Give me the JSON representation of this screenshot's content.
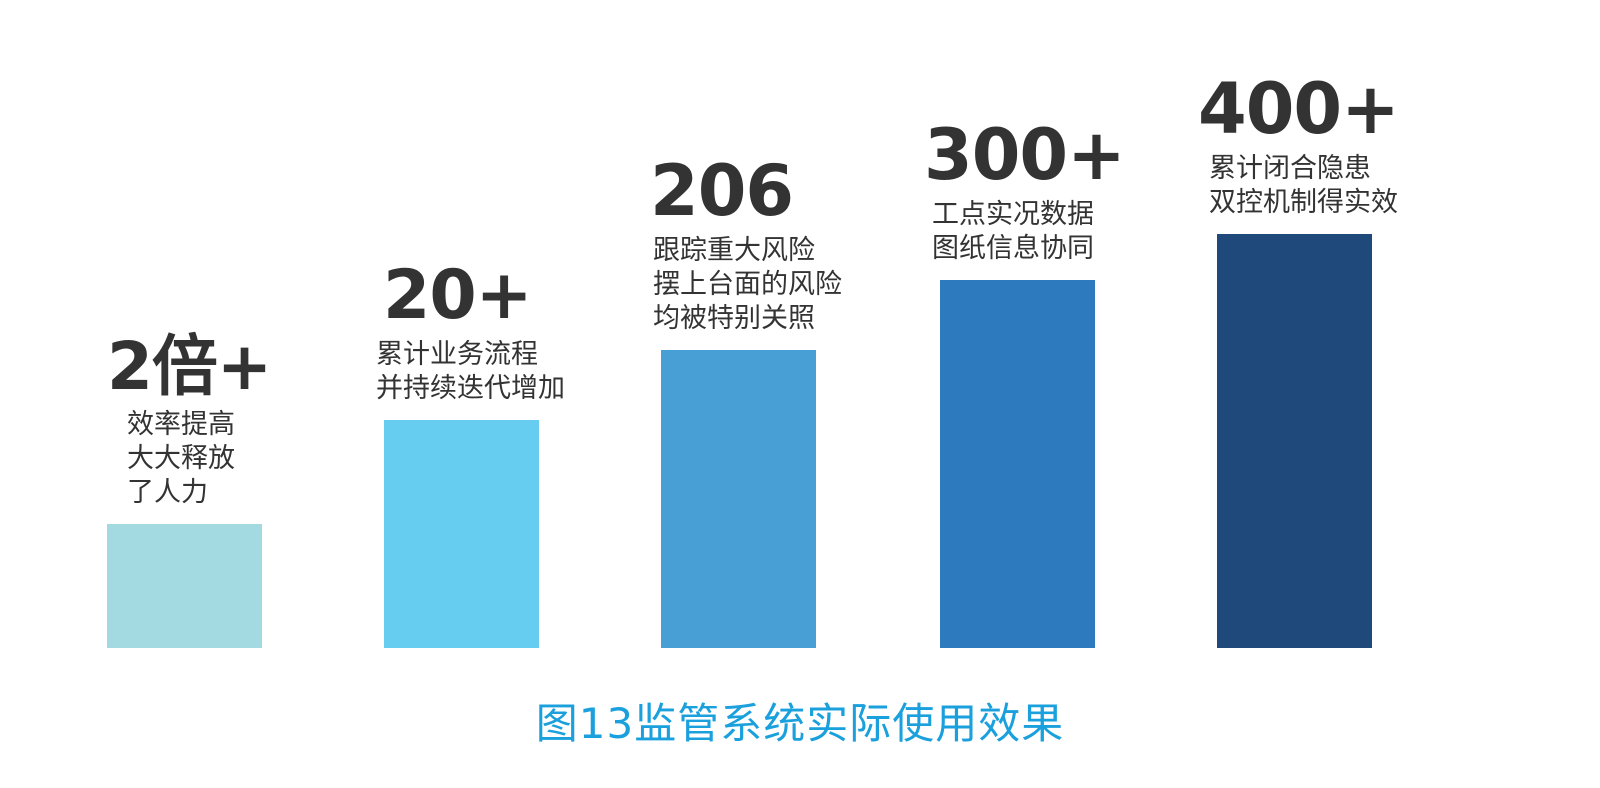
{
  "caption": "图13监管系统实际使用效果",
  "chart_data": {
    "type": "bar",
    "title": "图13监管系统实际使用效果",
    "categories": [
      "2倍+",
      "20+",
      "206",
      "300+",
      "400+"
    ],
    "values": [
      2,
      20,
      206,
      300,
      400
    ],
    "value_labels": [
      "2倍+",
      "20+",
      "206",
      "300+",
      "400+"
    ],
    "descriptions": [
      [
        "效率提高",
        "大大释放",
        "了人力"
      ],
      [
        "累计业务流程",
        "并持续迭代增加"
      ],
      [
        "跟踪重大风险",
        "摆上台面的风险",
        "均被特别关照"
      ],
      [
        "工点实况数据",
        "图纸信息协同"
      ],
      [
        "累计闭合隐患",
        "双控机制得实效"
      ]
    ],
    "bar_fill_fraction": [
      0.3,
      0.55,
      0.72,
      0.89,
      1.0
    ],
    "colors": [
      "#a3d9e1",
      "#66ccf0",
      "#489fd6",
      "#2e7abf",
      "#1f497a"
    ],
    "grid": false,
    "legend": "none"
  }
}
